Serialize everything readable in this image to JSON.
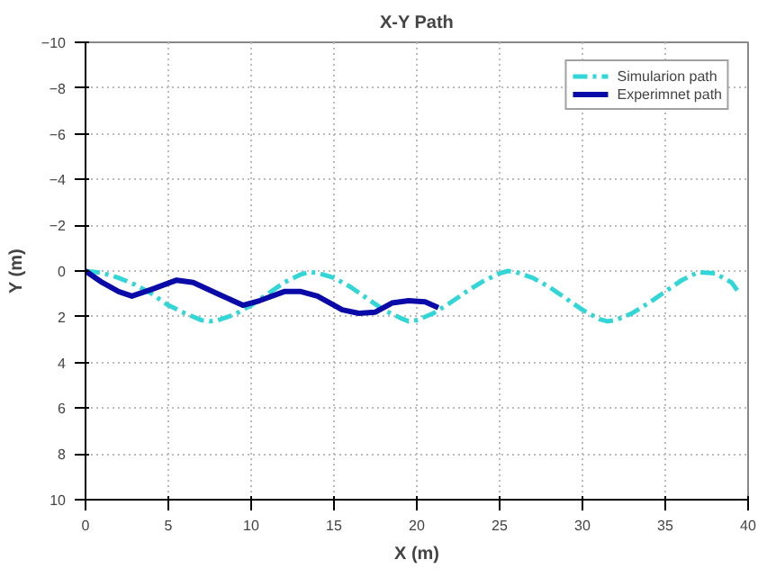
{
  "chart_data": {
    "type": "line",
    "title": "X-Y Path",
    "xlabel": "X (m)",
    "ylabel": "Y (m)",
    "xlim": [
      0,
      40
    ],
    "ylim": [
      10,
      -10
    ],
    "xticks": [
      0,
      5,
      10,
      15,
      20,
      25,
      30,
      35,
      40
    ],
    "yticks": [
      -10,
      -8,
      -6,
      -4,
      -2,
      0,
      2,
      4,
      6,
      8,
      10
    ],
    "grid": true,
    "legend": "top right",
    "series": [
      {
        "name": "Simularion path",
        "color": "#33d6d6",
        "line_style": "dashed",
        "x": [
          0,
          1,
          2,
          3,
          4,
          5,
          6,
          7,
          7.5,
          8,
          9,
          10,
          11,
          12,
          13,
          13.5,
          14,
          15,
          16,
          17,
          18,
          19,
          19.5,
          20,
          21,
          22,
          23,
          24,
          25,
          25.5,
          26,
          27,
          28,
          29,
          30,
          31,
          31.5,
          32,
          33,
          34,
          35,
          36,
          37,
          38,
          39,
          39.5
        ],
        "values": [
          0,
          0.08,
          0.3,
          0.6,
          1.0,
          1.5,
          1.85,
          2.15,
          2.2,
          2.15,
          1.9,
          1.5,
          1.0,
          0.5,
          0.15,
          0.05,
          0.08,
          0.3,
          0.7,
          1.2,
          1.7,
          2.05,
          2.2,
          2.15,
          1.85,
          1.4,
          0.9,
          0.45,
          0.1,
          0.0,
          0.05,
          0.3,
          0.7,
          1.2,
          1.7,
          2.1,
          2.2,
          2.15,
          1.85,
          1.4,
          0.9,
          0.4,
          0.05,
          0.1,
          0.5,
          1.0
        ]
      },
      {
        "name": "Experimnet path",
        "color": "#0a0aa8",
        "line_style": "solid",
        "x": [
          0,
          1,
          2,
          2.8,
          4,
          5.5,
          6.5,
          8,
          9.5,
          10.5,
          12,
          13,
          14,
          15.5,
          16.5,
          17.5,
          18.5,
          19.5,
          20.5,
          21.3
        ],
        "values": [
          0,
          0.5,
          0.9,
          1.1,
          0.8,
          0.4,
          0.5,
          1.0,
          1.5,
          1.3,
          0.9,
          0.9,
          1.1,
          1.7,
          1.85,
          1.8,
          1.4,
          1.3,
          1.35,
          1.6
        ]
      }
    ]
  }
}
